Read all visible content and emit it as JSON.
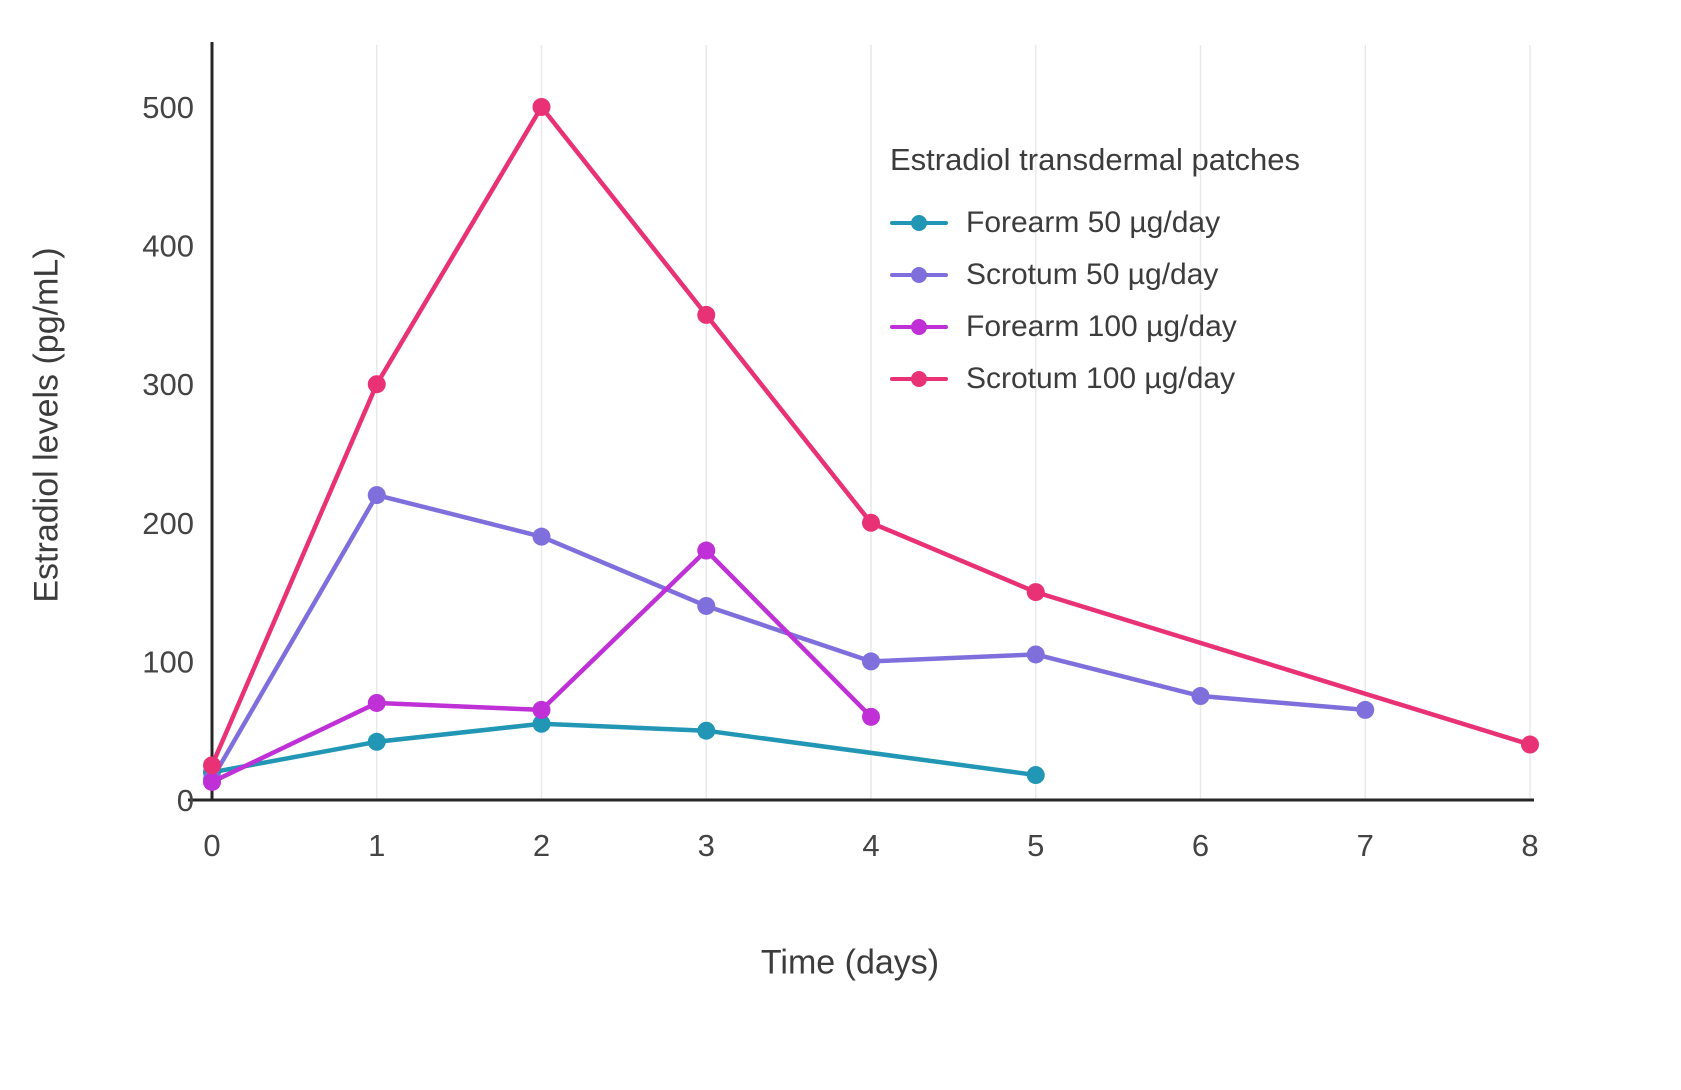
{
  "chart_data": {
    "type": "line",
    "title": "",
    "xlabel": "Time (days)",
    "ylabel": "Estradiol levels (pg/mL)",
    "xlim": [
      0,
      8
    ],
    "ylim": [
      0,
      500
    ],
    "xticks": [
      0,
      1,
      2,
      3,
      4,
      5,
      6,
      7,
      8
    ],
    "yticks": [
      0,
      100,
      200,
      300,
      400,
      500
    ],
    "grid": "vertical-light",
    "legend": {
      "title": "Estradiol transdermal patches",
      "position": "upper-right-inside"
    },
    "series": [
      {
        "name": "Forearm 50 µg/day",
        "color": "#2196b5",
        "x": [
          0,
          1,
          2,
          3,
          5
        ],
        "y": [
          20,
          42,
          55,
          50,
          18
        ]
      },
      {
        "name": "Scrotum 50 µg/day",
        "color": "#7f6fdd",
        "x": [
          0,
          1,
          2,
          3,
          4,
          5,
          6,
          7
        ],
        "y": [
          15,
          220,
          190,
          140,
          100,
          105,
          75,
          65
        ]
      },
      {
        "name": "Forearm 100 µg/day",
        "color": "#bf30d6",
        "x": [
          0,
          1,
          2,
          3,
          4
        ],
        "y": [
          13,
          70,
          65,
          180,
          60
        ]
      },
      {
        "name": "Scrotum 100 µg/day",
        "color": "#e83275",
        "x": [
          0,
          1,
          2,
          3,
          4,
          5,
          8
        ],
        "y": [
          25,
          300,
          500,
          350,
          200,
          150,
          40
        ]
      }
    ]
  }
}
